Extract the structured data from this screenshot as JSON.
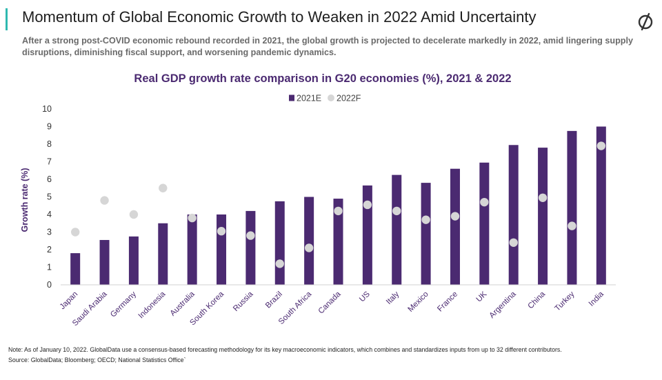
{
  "header": {
    "title": "Momentum of Global Economic Growth to Weaken in 2022 Amid Uncertainty",
    "subtitle": "After a strong post-COVID economic rebound recorded in 2021, the global growth is projected to decelerate markedly in 2022, amid lingering supply disruptions, diminishing fiscal support, and worsening pandemic dynamics."
  },
  "logo": {
    "icon": "globaldata-logo-icon",
    "color": "#333333"
  },
  "chart_data": {
    "type": "bar",
    "title": "Real GDP growth rate comparison in G20 economies (%), 2021 & 2022",
    "ylabel": "Growth rate (%)",
    "xlabel": "",
    "ylim": [
      0,
      10
    ],
    "yticks": [
      "0",
      "1",
      "2",
      "3",
      "4",
      "5",
      "6",
      "7",
      "8",
      "9",
      "10"
    ],
    "grid": false,
    "legend_position": "top-center",
    "categories": [
      "Japan",
      "Saudi Arabia",
      "Germany",
      "Indonesia",
      "Australia",
      "South Korea",
      "Russia",
      "Brazil",
      "South Africa",
      "Canada",
      "US",
      "Italy",
      "Mexico",
      "France",
      "UK",
      "Argentina",
      "China",
      "Turkey",
      "India"
    ],
    "series": [
      {
        "name": "2021E",
        "marker": "bar",
        "color": "#4b2a71",
        "values": [
          1.8,
          2.55,
          2.75,
          3.5,
          4.0,
          4.0,
          4.2,
          4.75,
          5.0,
          4.9,
          5.65,
          6.25,
          5.8,
          6.6,
          6.95,
          7.95,
          7.8,
          8.75,
          9.0
        ]
      },
      {
        "name": "2022F",
        "marker": "circle",
        "color": "#d6d6d6",
        "values": [
          3.0,
          4.8,
          4.0,
          5.5,
          3.8,
          3.05,
          2.8,
          1.2,
          2.1,
          4.2,
          4.55,
          4.2,
          3.7,
          3.9,
          4.7,
          2.4,
          4.95,
          3.35,
          7.9
        ]
      }
    ]
  },
  "footer": {
    "note": "Note: As of January 10, 2022. GlobalData use a consensus-based forecasting methodology for its key macroeconomic indicators, which combines and standardizes inputs from up to 32 different contributors.",
    "source": "Source: GlobalData; Bloomberg; OECD; National Statistics Office`"
  }
}
